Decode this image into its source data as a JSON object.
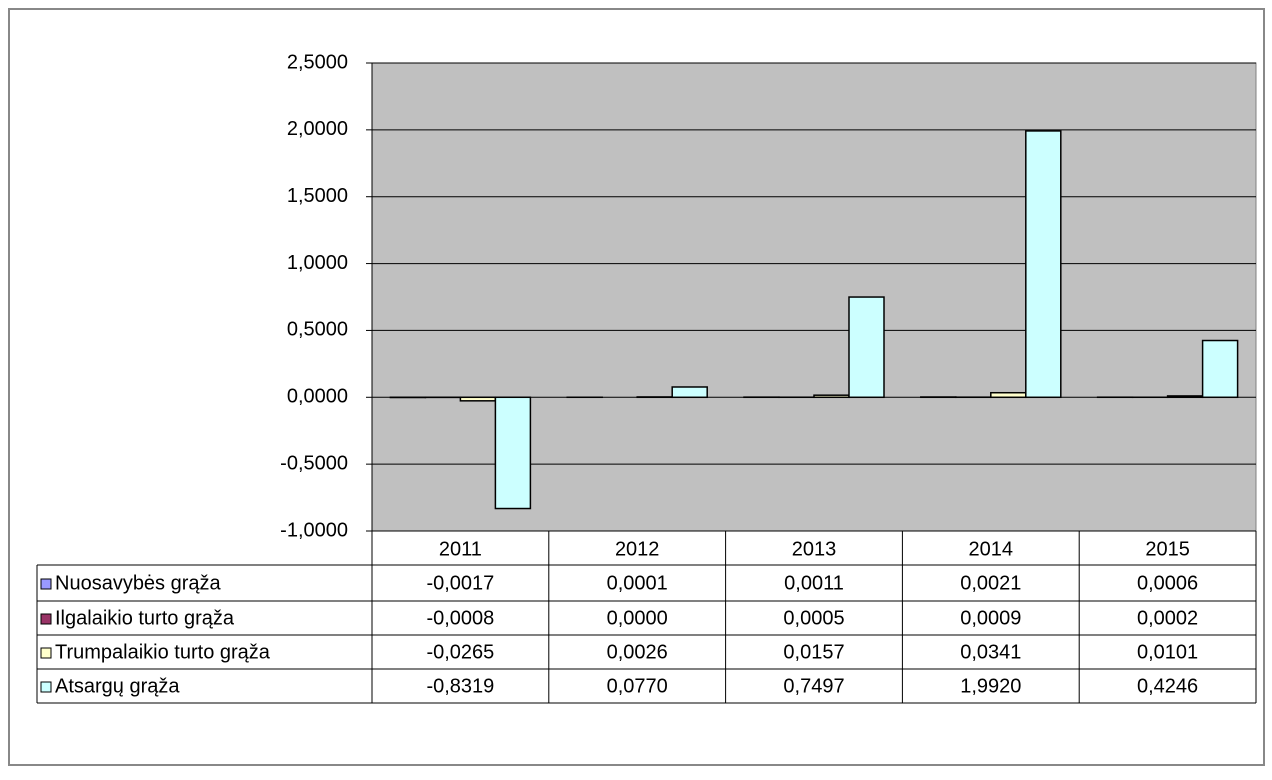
{
  "chart_data": {
    "type": "bar",
    "categories": [
      "2011",
      "2012",
      "2013",
      "2014",
      "2015"
    ],
    "series": [
      {
        "name": "Nuosavybės grąža",
        "color": "#9999ff",
        "values": [
          -0.0017,
          0.0001,
          0.0011,
          0.0021,
          0.0006
        ],
        "value_labels": [
          "-0,0017",
          "0,0001",
          "0,0011",
          "0,0021",
          "0,0006"
        ]
      },
      {
        "name": "Ilgalaikio turto grąža",
        "color": "#993366",
        "values": [
          -0.0008,
          0.0,
          0.0005,
          0.0009,
          0.0002
        ],
        "value_labels": [
          "-0,0008",
          "0,0000",
          "0,0005",
          "0,0009",
          "0,0002"
        ]
      },
      {
        "name": "Trumpalaikio turto grąža",
        "color": "#ffffcc",
        "values": [
          -0.0265,
          0.0026,
          0.0157,
          0.0341,
          0.0101
        ],
        "value_labels": [
          "-0,0265",
          "0,0026",
          "0,0157",
          "0,0341",
          "0,0101"
        ]
      },
      {
        "name": "Atsargų grąža",
        "color": "#ccffff",
        "values": [
          -0.8319,
          0.077,
          0.7497,
          1.992,
          0.4246
        ],
        "value_labels": [
          "-0,8319",
          "0,0770",
          "0,7497",
          "1,9920",
          "0,4246"
        ]
      }
    ],
    "ylim": [
      -1,
      2.5
    ],
    "yticks": [
      {
        "value": -1,
        "label": "-1,0000"
      },
      {
        "value": -0.5,
        "label": "-0,5000"
      },
      {
        "value": 0,
        "label": "0,0000"
      },
      {
        "value": 0.5,
        "label": "0,5000"
      },
      {
        "value": 1,
        "label": "1,0000"
      },
      {
        "value": 1.5,
        "label": "1,5000"
      },
      {
        "value": 2,
        "label": "2,0000"
      },
      {
        "value": 2.5,
        "label": "2,5000"
      }
    ],
    "grid": true
  }
}
